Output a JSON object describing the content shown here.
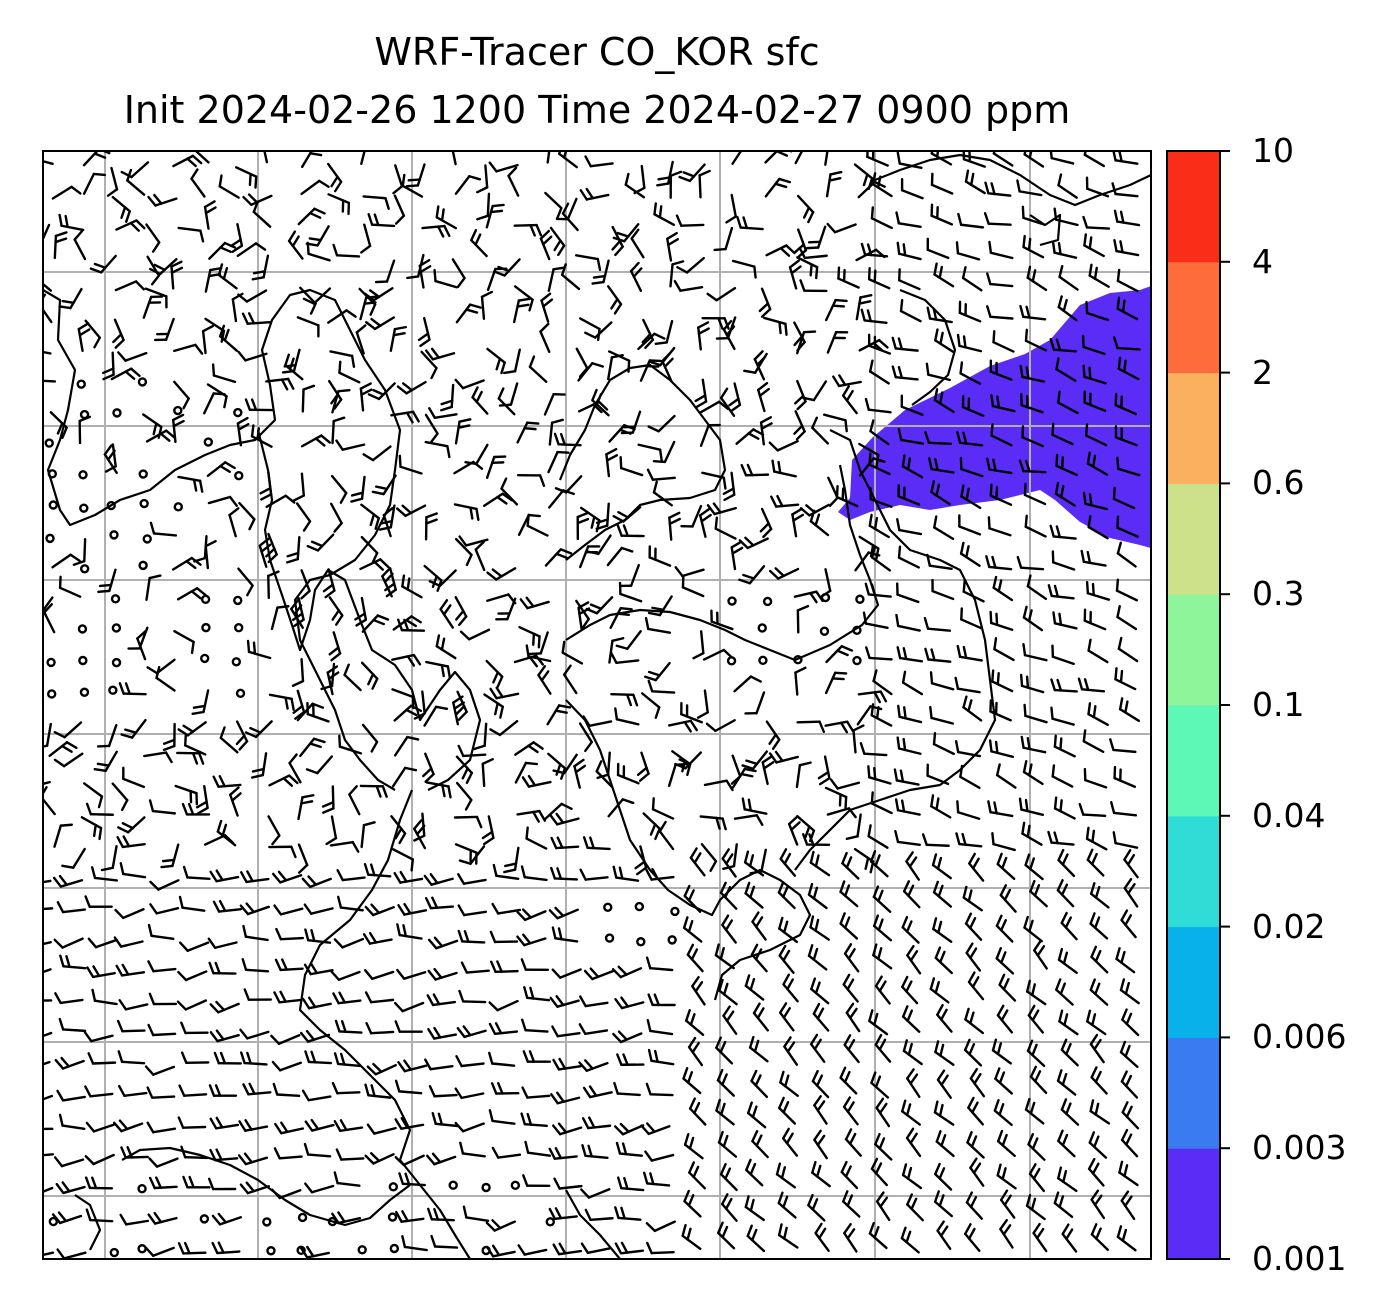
{
  "title": {
    "line1": "WRF-Tracer CO_KOR sfc",
    "line2": "Init 2024-02-26 1200 Time 2024-02-27 0900 ppm"
  },
  "colorbar": {
    "levels": [
      "0.001",
      "0.003",
      "0.006",
      "0.02",
      "0.04",
      "0.1",
      "0.3",
      "0.6",
      "2",
      "4",
      "10"
    ],
    "colors": [
      "#5a2cf6",
      "#3b7bf2",
      "#08b1e9",
      "#2fdcd6",
      "#5ef8b6",
      "#8ef59b",
      "#cde08a",
      "#fbb060",
      "#fd6c3a",
      "#fa2e18"
    ]
  },
  "map": {
    "plume_color": "#5a2cf6",
    "grid_color": "#b0b0b0",
    "coast_color": "#000000"
  }
}
